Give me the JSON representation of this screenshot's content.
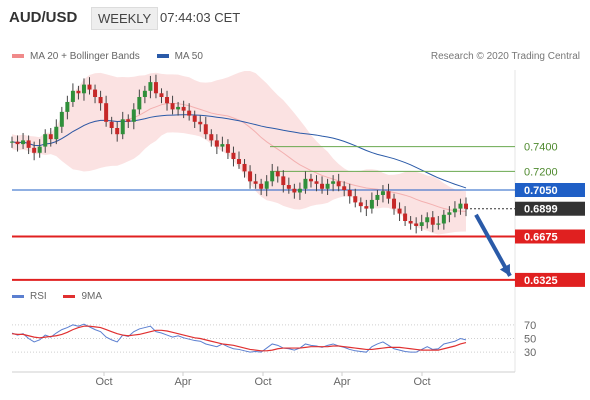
{
  "header": {
    "symbol": "AUD/USD",
    "timeframe": "WEEKLY",
    "time": "07:44:03 CET"
  },
  "legend": {
    "bb_label": "MA 20 + Bollinger Bands",
    "ma50_label": "MA 50",
    "source": "Research © 2020 Trading Central",
    "bb_color": "#f08a8a",
    "ma50_color": "#2a5aa8"
  },
  "rsi_legend": {
    "rsi_label": "RSI",
    "ma_label": "9MA",
    "rsi_color": "#5b7fd0",
    "ma_color": "#e03030"
  },
  "chart_data": [
    {
      "type": "candlestick",
      "title": "AUD/USD",
      "ylim": [
        0.63,
        0.805
      ],
      "x_ticks": [
        "Oct",
        "Apr",
        "Oct",
        "Apr",
        "Oct"
      ],
      "close_series": [
        0.744,
        0.742,
        0.745,
        0.739,
        0.735,
        0.74,
        0.75,
        0.746,
        0.756,
        0.768,
        0.776,
        0.785,
        0.783,
        0.79,
        0.786,
        0.78,
        0.775,
        0.76,
        0.755,
        0.75,
        0.762,
        0.76,
        0.77,
        0.78,
        0.785,
        0.792,
        0.783,
        0.78,
        0.775,
        0.77,
        0.772,
        0.769,
        0.765,
        0.76,
        0.758,
        0.75,
        0.745,
        0.74,
        0.742,
        0.735,
        0.73,
        0.726,
        0.72,
        0.712,
        0.71,
        0.706,
        0.712,
        0.72,
        0.716,
        0.709,
        0.706,
        0.703,
        0.706,
        0.714,
        0.712,
        0.71,
        0.706,
        0.71,
        0.712,
        0.708,
        0.705,
        0.7,
        0.695,
        0.692,
        0.69,
        0.697,
        0.701,
        0.704,
        0.698,
        0.69,
        0.686,
        0.68,
        0.678,
        0.676,
        0.679,
        0.683,
        0.677,
        0.678,
        0.685,
        0.687,
        0.69,
        0.694,
        0.6899
      ],
      "levels": [
        {
          "label": "0.7400",
          "value": 0.74,
          "color": "#6aa84f",
          "style": "thin"
        },
        {
          "label": "0.7200",
          "value": 0.72,
          "color": "#6aa84f",
          "style": "thin"
        },
        {
          "label": "0.7050",
          "value": 0.705,
          "color": "#1f5fc6",
          "style": "line"
        },
        {
          "label": "0.6899",
          "value": 0.6899,
          "color": "#333333",
          "style": "dotted"
        },
        {
          "label": "0.6675",
          "value": 0.6675,
          "color": "#e02020",
          "style": "thick"
        },
        {
          "label": "0.6325",
          "value": 0.6325,
          "color": "#e02020",
          "style": "thick"
        }
      ],
      "forecast_target": 0.6325
    },
    {
      "type": "line",
      "title": "RSI",
      "ylim": [
        20,
        80
      ],
      "y_ticks": [
        70,
        50,
        30
      ],
      "rsi": [
        58,
        55,
        57,
        50,
        45,
        48,
        55,
        52,
        58,
        63,
        66,
        70,
        68,
        71,
        67,
        63,
        60,
        52,
        48,
        45,
        55,
        53,
        60,
        64,
        66,
        68,
        60,
        58,
        55,
        52,
        54,
        51,
        49,
        47,
        46,
        42,
        40,
        38,
        42,
        38,
        35,
        34,
        32,
        30,
        31,
        30,
        36,
        42,
        40,
        36,
        35,
        33,
        36,
        42,
        40,
        39,
        37,
        40,
        42,
        39,
        37,
        34,
        32,
        31,
        30,
        38,
        42,
        45,
        40,
        35,
        33,
        31,
        30,
        30,
        34,
        38,
        34,
        35,
        42,
        44,
        46,
        50,
        48
      ],
      "ma9": [
        57,
        56,
        56,
        54,
        52,
        51,
        52,
        53,
        54,
        56,
        59,
        63,
        66,
        68,
        68,
        67,
        66,
        63,
        60,
        57,
        55,
        54,
        55,
        56,
        58,
        60,
        62,
        62,
        61,
        59,
        57,
        55,
        53,
        51,
        50,
        48,
        46,
        44,
        42,
        41,
        40,
        38,
        36,
        34,
        33,
        32,
        32,
        33,
        35,
        36,
        36,
        36,
        36,
        37,
        38,
        38,
        38,
        38,
        39,
        39,
        38,
        37,
        36,
        35,
        34,
        34,
        35,
        36,
        37,
        37,
        37,
        36,
        35,
        34,
        33,
        33,
        33,
        33,
        35,
        37,
        39,
        42,
        44
      ]
    }
  ]
}
